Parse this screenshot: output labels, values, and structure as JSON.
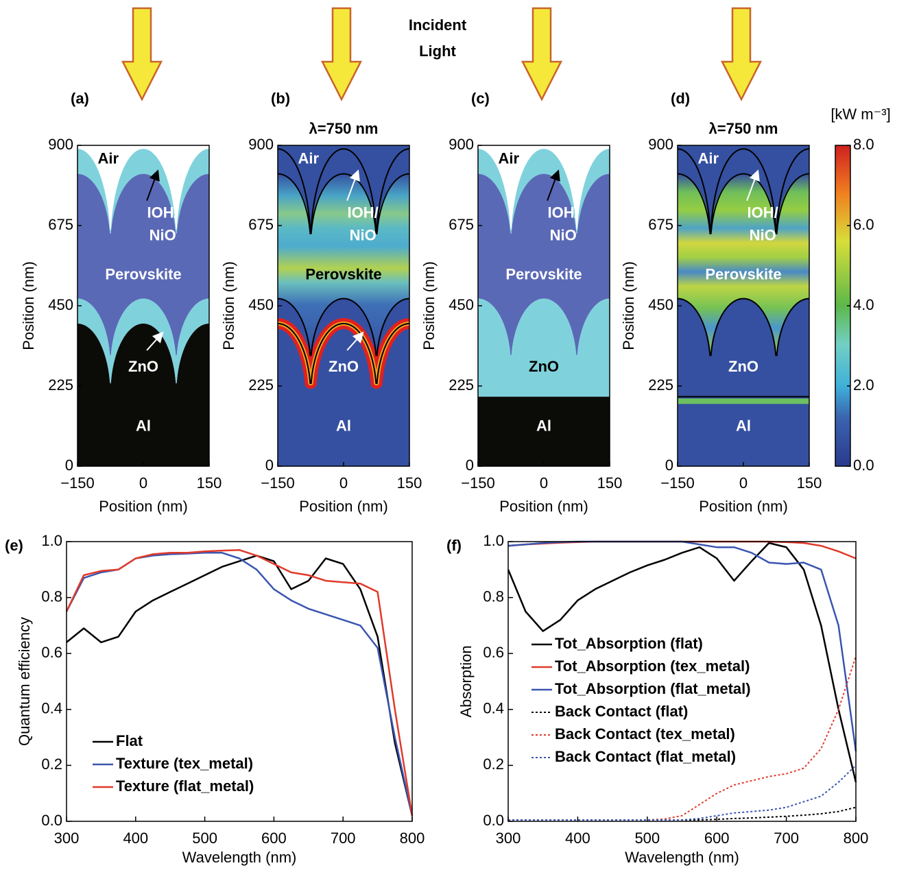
{
  "header": {
    "lines": [
      "Incident",
      "Light"
    ]
  },
  "chart_data": [
    {
      "type": "map",
      "label": "(a)",
      "xlabel": "Position (nm)",
      "ylabel": "Position (nm)",
      "xlim": [
        -150,
        150
      ],
      "xticks": [
        {
          "value": -150,
          "label": "−150"
        },
        0,
        150
      ],
      "ylim": [
        0,
        900
      ],
      "yticks": [
        0,
        225,
        450,
        675,
        900
      ],
      "regions": [
        "Air",
        "IOH/",
        "NiO",
        "Perovskite",
        "ZnO",
        "Al"
      ]
    },
    {
      "type": "map",
      "label": "(b)",
      "subtitle": "λ=750 nm",
      "xlabel": "Position (nm)",
      "ylabel": "Position (nm)",
      "xlim": [
        -150,
        150
      ],
      "xticks": [
        {
          "value": -150,
          "label": "−150"
        },
        0,
        150
      ],
      "ylim": [
        0,
        900
      ],
      "yticks": [
        0,
        225,
        450,
        675,
        900
      ],
      "regions": [
        "Air",
        "IOH/",
        "NiO",
        "Perovskite",
        "ZnO",
        "Al"
      ]
    },
    {
      "type": "map",
      "label": "(c)",
      "xlabel": "Position (nm)",
      "ylabel": "Position (nm)",
      "xlim": [
        -150,
        150
      ],
      "xticks": [
        {
          "value": -150,
          "label": "−150"
        },
        0,
        150
      ],
      "ylim": [
        0,
        900
      ],
      "yticks": [
        0,
        225,
        450,
        675,
        900
      ],
      "regions": [
        "Air",
        "IOH/",
        "NiO",
        "Perovskite",
        "ZnO",
        "Al"
      ]
    },
    {
      "type": "map",
      "label": "(d)",
      "subtitle": "λ=750 nm",
      "xlabel": "Position (nm)",
      "ylabel": "Position (nm)",
      "xlim": [
        -150,
        150
      ],
      "xticks": [
        {
          "value": -150,
          "label": "−150"
        },
        0,
        150
      ],
      "ylim": [
        0,
        900
      ],
      "yticks": [
        0,
        225,
        450,
        675,
        900
      ],
      "regions": [
        "Air",
        "IOH/",
        "NiO",
        "Perovskite",
        "ZnO",
        "Al"
      ],
      "colorbar": {
        "label": "[kW m⁻³]",
        "lim": [
          0,
          8
        ],
        "ticks": [
          {
            "value": 0,
            "label": "0.0"
          },
          {
            "value": 2,
            "label": "2.0"
          },
          {
            "value": 4,
            "label": "4.0"
          },
          {
            "value": 6,
            "label": "6.0"
          },
          {
            "value": 8,
            "label": "8.0"
          }
        ]
      }
    },
    {
      "type": "line",
      "label": "(e)",
      "xlabel": "Wavelength (nm)",
      "ylabel": "Quantum efficiency",
      "x": [
        300,
        325,
        350,
        375,
        400,
        425,
        450,
        475,
        500,
        525,
        550,
        575,
        600,
        625,
        650,
        675,
        700,
        725,
        750,
        775,
        800
      ],
      "xlim": [
        300,
        800
      ],
      "xticks": [
        300,
        400,
        500,
        600,
        700,
        800
      ],
      "ylim": [
        0,
        1
      ],
      "yticks": [
        {
          "value": 0,
          "label": "0.0"
        },
        {
          "value": 0.2,
          "label": "0.2"
        },
        {
          "value": 0.4,
          "label": "0.4"
        },
        {
          "value": 0.6,
          "label": "0.6"
        },
        {
          "value": 0.8,
          "label": "0.8"
        },
        {
          "value": 1,
          "label": "1.0"
        }
      ],
      "series": [
        {
          "name": "Flat",
          "color": "#000000",
          "values": [
            0.64,
            0.69,
            0.64,
            0.66,
            0.75,
            0.79,
            0.82,
            0.85,
            0.88,
            0.91,
            0.93,
            0.95,
            0.93,
            0.83,
            0.86,
            0.94,
            0.92,
            0.83,
            0.66,
            0.28,
            0.02
          ]
        },
        {
          "name": "Texture (tex_metal)",
          "color": "#3a55b0",
          "values": [
            0.75,
            0.87,
            0.89,
            0.9,
            0.94,
            0.95,
            0.955,
            0.957,
            0.96,
            0.96,
            0.94,
            0.9,
            0.83,
            0.79,
            0.76,
            0.74,
            0.72,
            0.7,
            0.62,
            0.3,
            0.02
          ]
        },
        {
          "name": "Texture (flat_metal)",
          "color": "#e03a2a",
          "values": [
            0.75,
            0.88,
            0.895,
            0.9,
            0.94,
            0.955,
            0.96,
            0.96,
            0.965,
            0.968,
            0.97,
            0.95,
            0.92,
            0.89,
            0.88,
            0.86,
            0.855,
            0.85,
            0.82,
            0.4,
            0.02
          ]
        }
      ]
    },
    {
      "type": "line",
      "label": "(f)",
      "xlabel": "Wavelength (nm)",
      "ylabel": "Absorption",
      "x": [
        300,
        325,
        350,
        375,
        400,
        425,
        450,
        475,
        500,
        525,
        550,
        575,
        600,
        625,
        650,
        675,
        700,
        725,
        750,
        775,
        800
      ],
      "xlim": [
        300,
        800
      ],
      "xticks": [
        300,
        400,
        500,
        600,
        700,
        800
      ],
      "ylim": [
        0,
        1
      ],
      "yticks": [
        {
          "value": 0,
          "label": "0.0"
        },
        {
          "value": 0.2,
          "label": "0.2"
        },
        {
          "value": 0.4,
          "label": "0.4"
        },
        {
          "value": 0.6,
          "label": "0.6"
        },
        {
          "value": 0.8,
          "label": "0.8"
        },
        {
          "value": 1,
          "label": "1.0"
        }
      ],
      "series": [
        {
          "name": "Tot_Absorption (flat)",
          "color": "#000000",
          "linestyle": "solid",
          "values": [
            0.9,
            0.75,
            0.68,
            0.72,
            0.79,
            0.83,
            0.86,
            0.89,
            0.915,
            0.935,
            0.96,
            0.98,
            0.94,
            0.86,
            0.93,
            0.995,
            0.98,
            0.9,
            0.7,
            0.4,
            0.14
          ]
        },
        {
          "name": "Tot_Absorption (tex_metal)",
          "color": "#e03a2a",
          "linestyle": "solid",
          "values": [
            0.985,
            0.99,
            0.993,
            0.996,
            0.998,
            1,
            1,
            1,
            1,
            1,
            1,
            1,
            1,
            1,
            1,
            1,
            0.998,
            0.995,
            0.985,
            0.965,
            0.94
          ]
        },
        {
          "name": "Tot_Absorption (flat_metal)",
          "color": "#3a55b0",
          "linestyle": "solid",
          "values": [
            0.985,
            0.99,
            0.995,
            0.998,
            1,
            1,
            1,
            1,
            1,
            1,
            1,
            0.99,
            0.98,
            0.98,
            0.96,
            0.925,
            0.92,
            0.925,
            0.9,
            0.7,
            0.25
          ]
        },
        {
          "name": "Back Contact (flat)",
          "color": "#000000",
          "linestyle": "dotted",
          "values": [
            0.005,
            0.005,
            0.005,
            0.005,
            0.005,
            0.005,
            0.005,
            0.005,
            0.005,
            0.005,
            0.005,
            0.005,
            0.007,
            0.01,
            0.012,
            0.015,
            0.018,
            0.022,
            0.027,
            0.035,
            0.05
          ]
        },
        {
          "name": "Back Contact (tex_metal)",
          "color": "#e03a2a",
          "linestyle": "dotted",
          "values": [
            0.005,
            0.005,
            0.005,
            0.005,
            0.005,
            0.005,
            0.005,
            0.005,
            0.005,
            0.008,
            0.02,
            0.06,
            0.1,
            0.13,
            0.145,
            0.16,
            0.17,
            0.19,
            0.26,
            0.4,
            0.59
          ]
        },
        {
          "name": "Back Contact (flat_metal)",
          "color": "#3a55b0",
          "linestyle": "dotted",
          "values": [
            0.005,
            0.005,
            0.005,
            0.005,
            0.005,
            0.005,
            0.005,
            0.005,
            0.005,
            0.005,
            0.005,
            0.01,
            0.02,
            0.03,
            0.035,
            0.04,
            0.05,
            0.07,
            0.09,
            0.14,
            0.2
          ]
        }
      ]
    }
  ]
}
